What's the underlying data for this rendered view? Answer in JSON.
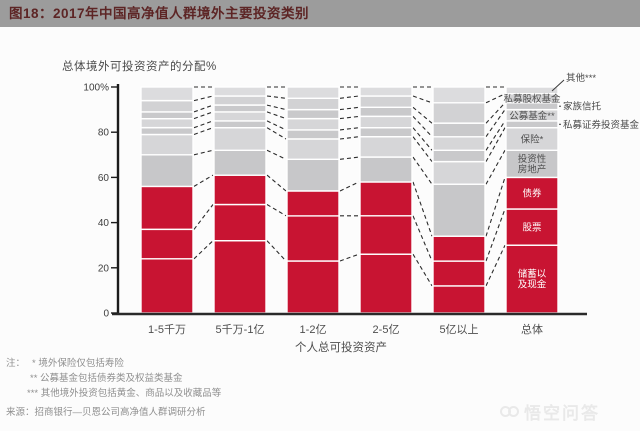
{
  "header": {
    "title": "图18：2017年中国高净值人群境外主要投资类别"
  },
  "chart_data": {
    "type": "bar",
    "stacked": true,
    "title": "2017年中国高净值人群境外主要投资类别",
    "ylabel": "总体境外可投资资产的分配%",
    "xlabel": "个人总可投资资产",
    "ylim": [
      0,
      100
    ],
    "grid": false,
    "legend_position": "labels-on-total-bar-right",
    "yticks": [
      {
        "v": 100,
        "t": "100%"
      },
      {
        "v": 80,
        "t": "80"
      },
      {
        "v": 60,
        "t": "60"
      },
      {
        "v": 40,
        "t": "40"
      },
      {
        "v": 20,
        "t": "20"
      },
      {
        "v": 0,
        "t": "0"
      }
    ],
    "categories": [
      "1-5千万",
      "5千万-1亿",
      "1-2亿",
      "2-5亿",
      "5亿以上",
      "总体"
    ],
    "series": [
      {
        "name": "储蓄以及现金",
        "color": "#c81432",
        "values": [
          24,
          32,
          23,
          26,
          12,
          30
        ],
        "label": "储蓄以\n及现金",
        "label_style": "on-red"
      },
      {
        "name": "股票",
        "color": "#c81432",
        "values": [
          13,
          16,
          20,
          17,
          11,
          16
        ],
        "label": "股票",
        "label_style": "on-red"
      },
      {
        "name": "债券",
        "color": "#c81432",
        "values": [
          19,
          13,
          11,
          15,
          11,
          14
        ],
        "label": "债券",
        "label_style": "on-red"
      },
      {
        "name": "投资性房地产",
        "color": "#c7c7c9",
        "values": [
          14,
          11,
          14,
          11,
          23,
          12
        ],
        "label": "投资性\n房地产",
        "label_style": "on-gray"
      },
      {
        "name": "保险*",
        "color": "#d6d6d8",
        "values": [
          9,
          10,
          9,
          9,
          10,
          10
        ],
        "label": "保险*",
        "label_style": "on-gray"
      },
      {
        "name": "私募证券投资基金",
        "color": "#c9c9cb",
        "values": [
          3,
          3,
          4,
          4,
          5,
          3
        ],
        "label": "私募证券投资基金",
        "label_style": "outside"
      },
      {
        "name": "公募基金**",
        "color": "#d6d6d8",
        "values": [
          4,
          4,
          5,
          5,
          6,
          5
        ],
        "label": "公募基金**",
        "label_style": "on-gray"
      },
      {
        "name": "家族信托",
        "color": "#c9c9cb",
        "values": [
          3,
          3,
          4,
          4,
          6,
          3
        ],
        "label": "家族信托",
        "label_style": "outside"
      },
      {
        "name": "私募股权基金",
        "color": "#d2d2d4",
        "values": [
          5,
          4,
          5,
          5,
          9,
          4
        ],
        "label": "私募股权基金",
        "label_style": "on-gray"
      },
      {
        "name": "其他***",
        "color": "#dcdcde",
        "values": [
          6,
          4,
          5,
          4,
          7,
          3
        ],
        "label": "其他***",
        "label_style": "outside-top"
      }
    ]
  },
  "notes": {
    "prefix": "注：",
    "line1": "* 境外保险仅包括寿险",
    "line2": "** 公募基金包括债券类及权益类基金",
    "line3": "*** 其他境外投资包括黄金、商品以及收藏品等"
  },
  "source": "来源：招商银行—贝恩公司高净值人群调研分析",
  "watermark": "悟空问答",
  "colors": {
    "accent_red": "#c81432",
    "header_bg": "#9c9c9c",
    "header_text": "#5d2525",
    "axis": "#1c1c1c",
    "muted_text": "#8f8f8f"
  }
}
